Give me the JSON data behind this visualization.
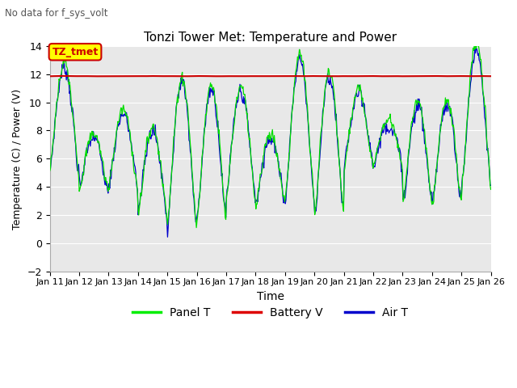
{
  "title": "Tonzi Tower Met: Temperature and Power",
  "subtitle": "No data for f_sys_volt",
  "xlabel": "Time",
  "ylabel": "Temperature (C) / Power (V)",
  "ylim": [
    -2,
    14
  ],
  "yticks": [
    -2,
    0,
    2,
    4,
    6,
    8,
    10,
    12,
    14
  ],
  "xlim": [
    0,
    15
  ],
  "xtick_labels": [
    "Jan 11",
    "Jan 12",
    "Jan 13",
    "Jan 14",
    "Jan 15",
    "Jan 16",
    "Jan 17",
    "Jan 18",
    "Jan 19",
    "Jan 20",
    "Jan 21",
    "Jan 22",
    "Jan 23",
    "Jan 24",
    "Jan 25",
    "Jan 26"
  ],
  "legend_entries": [
    "Panel T",
    "Battery V",
    "Air T"
  ],
  "legend_colors": [
    "#00ee00",
    "#dd0000",
    "#0000cc"
  ],
  "battery_v": 11.85,
  "annotation_text": "TZ_tmet",
  "annotation_color": "#cc0000",
  "annotation_bg": "#ffff00",
  "bg_color": "#e8e8e8",
  "panel_color": "#00dd00",
  "air_color": "#0000cc",
  "battery_color": "#cc0000",
  "grid_color": "#ffffff"
}
